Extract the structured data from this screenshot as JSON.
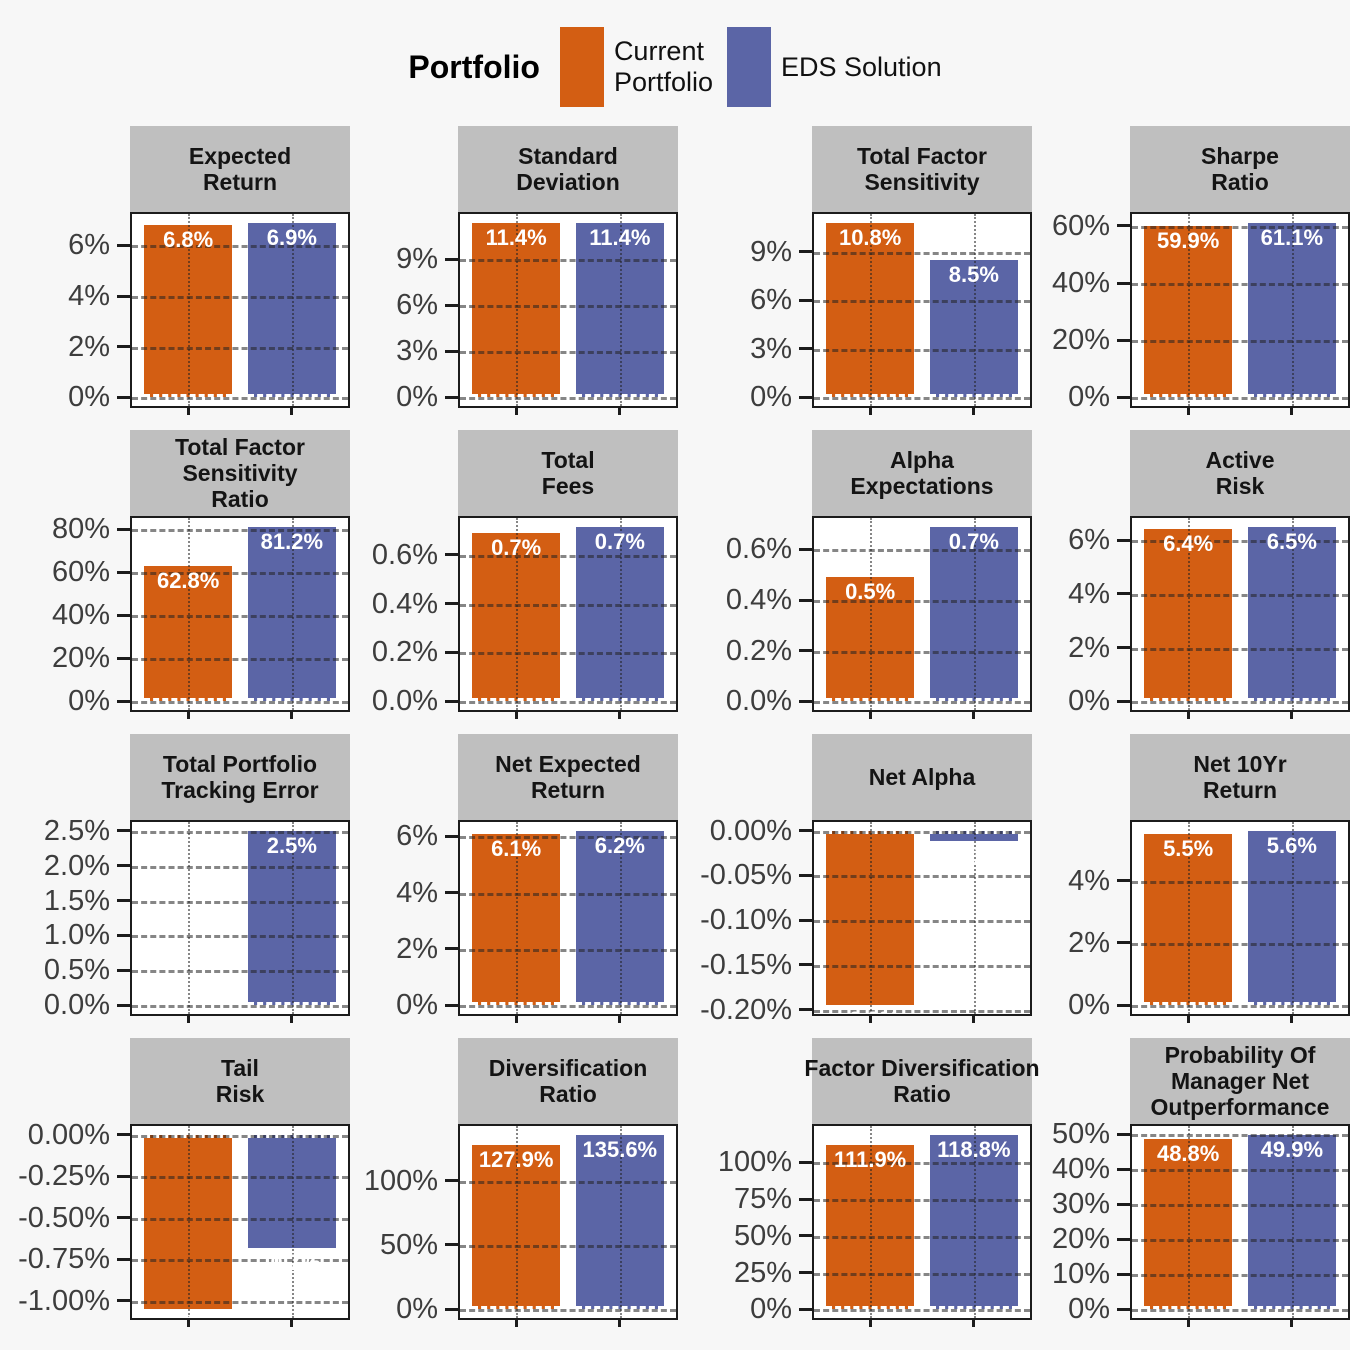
{
  "legend": {
    "title": "Portfolio",
    "items": [
      {
        "label": "Current Portfolio",
        "lines": [
          "Current",
          "Portfolio"
        ],
        "color": "#D35E13"
      },
      {
        "label": "EDS Solution",
        "lines": [
          "EDS Solution"
        ],
        "color": "#5B65A6"
      }
    ]
  },
  "colors": {
    "current_portfolio": "#D35E13",
    "eds_solution": "#5B65A6",
    "strip_background": "#BFBFBF",
    "page_background": "#F7F7F7",
    "panel_border": "#1C1C1C",
    "tick_text": "#3D3D3D"
  },
  "chart_data": [
    {
      "type": "bar",
      "title": "Expected Return",
      "title_lines": [
        "Expected",
        "Return"
      ],
      "categories": [
        "Current Portfolio",
        "EDS Solution"
      ],
      "values": [
        6.8,
        6.9
      ],
      "bar_labels": [
        "6.8%",
        "6.9%"
      ],
      "yticks": [
        0,
        2,
        4,
        6
      ],
      "ytick_labels": [
        "0%",
        "2%",
        "4%",
        "6%"
      ],
      "ylim": [
        -0.345,
        7.245
      ],
      "grid": true,
      "legend_position": "top"
    },
    {
      "type": "bar",
      "title": "Standard Deviation",
      "title_lines": [
        "Standard",
        "Deviation"
      ],
      "categories": [
        "Current Portfolio",
        "EDS Solution"
      ],
      "values": [
        11.4,
        11.4
      ],
      "bar_labels": [
        "11.4%",
        "11.4%"
      ],
      "yticks": [
        0,
        3,
        6,
        9
      ],
      "ytick_labels": [
        "0%",
        "3%",
        "6%",
        "9%"
      ],
      "ylim": [
        -0.57,
        11.97
      ],
      "grid": true
    },
    {
      "type": "bar",
      "title": "Total Factor Sensitivity",
      "title_lines": [
        "Total Factor",
        "Sensitivity"
      ],
      "categories": [
        "Current Portfolio",
        "EDS Solution"
      ],
      "values": [
        10.8,
        8.5
      ],
      "bar_labels": [
        "10.8%",
        "8.5%"
      ],
      "yticks": [
        0,
        3,
        6,
        9
      ],
      "ytick_labels": [
        "0%",
        "3%",
        "6%",
        "9%"
      ],
      "ylim": [
        -0.54,
        11.34
      ],
      "grid": true
    },
    {
      "type": "bar",
      "title": "Sharpe Ratio",
      "title_lines": [
        "Sharpe",
        "Ratio"
      ],
      "categories": [
        "Current Portfolio",
        "EDS Solution"
      ],
      "values": [
        59.9,
        61.1
      ],
      "bar_labels": [
        "59.9%",
        "61.1%"
      ],
      "yticks": [
        0,
        20,
        40,
        60
      ],
      "ytick_labels": [
        "0%",
        "20%",
        "40%",
        "60%"
      ],
      "ylim": [
        -3.055,
        64.155
      ],
      "grid": true
    },
    {
      "type": "bar",
      "title": "Total Factor Sensitivity Ratio",
      "title_lines": [
        "Total Factor",
        "Sensitivity",
        "Ratio"
      ],
      "categories": [
        "Current Portfolio",
        "EDS Solution"
      ],
      "values": [
        62.8,
        81.2
      ],
      "bar_labels": [
        "62.8%",
        "81.2%"
      ],
      "yticks": [
        0,
        20,
        40,
        60,
        80
      ],
      "ytick_labels": [
        "0%",
        "20%",
        "40%",
        "60%",
        "80%"
      ],
      "ylim": [
        -4.06,
        85.26
      ],
      "grid": true
    },
    {
      "type": "bar",
      "title": "Total Fees",
      "title_lines": [
        "Total",
        "Fees"
      ],
      "categories": [
        "Current Portfolio",
        "EDS Solution"
      ],
      "values": [
        0.69,
        0.715
      ],
      "bar_labels": [
        "0.7%",
        "0.7%"
      ],
      "yticks": [
        0,
        0.2,
        0.4,
        0.6
      ],
      "ytick_labels": [
        "0.0%",
        "0.2%",
        "0.4%",
        "0.6%"
      ],
      "ylim": [
        -0.0358,
        0.7508
      ],
      "grid": true
    },
    {
      "type": "bar",
      "title": "Alpha Expectations",
      "title_lines": [
        "Alpha",
        "Expectations"
      ],
      "categories": [
        "Current Portfolio",
        "EDS Solution"
      ],
      "values": [
        0.49,
        0.69
      ],
      "bar_labels": [
        "0.5%",
        "0.7%"
      ],
      "yticks": [
        0,
        0.2,
        0.4,
        0.6
      ],
      "ytick_labels": [
        "0.0%",
        "0.2%",
        "0.4%",
        "0.6%"
      ],
      "ylim": [
        -0.0345,
        0.7245
      ],
      "grid": true
    },
    {
      "type": "bar",
      "title": "Active Risk",
      "title_lines": [
        "Active",
        "Risk"
      ],
      "categories": [
        "Current Portfolio",
        "EDS Solution"
      ],
      "values": [
        6.4,
        6.5
      ],
      "bar_labels": [
        "6.4%",
        "6.5%"
      ],
      "yticks": [
        0,
        2,
        4,
        6
      ],
      "ytick_labels": [
        "0%",
        "2%",
        "4%",
        "6%"
      ],
      "ylim": [
        -0.325,
        6.825
      ],
      "grid": true
    },
    {
      "type": "bar",
      "title": "Total Portfolio Tracking Error",
      "title_lines": [
        "Total Portfolio",
        "Tracking Error"
      ],
      "categories": [
        "Current Portfolio",
        "EDS Solution"
      ],
      "values": [
        0,
        2.5
      ],
      "bar_labels": [
        null,
        "2.5%"
      ],
      "yticks": [
        0,
        0.5,
        1.0,
        1.5,
        2.0,
        2.5
      ],
      "ytick_labels": [
        "0.0%",
        "0.5%",
        "1.0%",
        "1.5%",
        "2.0%",
        "2.5%"
      ],
      "ylim": [
        -0.125,
        2.625
      ],
      "grid": true
    },
    {
      "type": "bar",
      "title": "Net Expected Return",
      "title_lines": [
        "Net Expected",
        "Return"
      ],
      "categories": [
        "Current Portfolio",
        "EDS Solution"
      ],
      "values": [
        6.1,
        6.2
      ],
      "bar_labels": [
        "6.1%",
        "6.2%"
      ],
      "yticks": [
        0,
        2,
        4,
        6
      ],
      "ytick_labels": [
        "0%",
        "2%",
        "4%",
        "6%"
      ],
      "ylim": [
        -0.31,
        6.51
      ],
      "grid": true
    },
    {
      "type": "bar",
      "title": "Net Alpha",
      "title_lines": [
        "Net Alpha"
      ],
      "categories": [
        "Current Portfolio",
        "EDS Solution"
      ],
      "values": [
        -0.195,
        -0.012
      ],
      "bar_labels": [
        "-0.2%",
        "0%"
      ],
      "yticks": [
        0,
        -0.05,
        -0.1,
        -0.15,
        -0.2
      ],
      "ytick_labels": [
        "0.00%",
        "-0.05%",
        "-0.10%",
        "-0.15%",
        "-0.20%"
      ],
      "ylim": [
        -0.20475,
        0.00975
      ],
      "grid": true
    },
    {
      "type": "bar",
      "title": "Net 10Yr Return",
      "title_lines": [
        "Net 10Yr",
        "Return"
      ],
      "categories": [
        "Current Portfolio",
        "EDS Solution"
      ],
      "values": [
        5.5,
        5.6
      ],
      "bar_labels": [
        "5.5%",
        "5.6%"
      ],
      "yticks": [
        0,
        2,
        4
      ],
      "ytick_labels": [
        "0%",
        "2%",
        "4%"
      ],
      "ylim": [
        -0.28,
        5.88
      ],
      "grid": true
    },
    {
      "type": "bar",
      "title": "Tail Risk",
      "title_lines": [
        "Tail",
        "Risk"
      ],
      "categories": [
        "Current Portfolio",
        "EDS Solution"
      ],
      "values": [
        -1.05,
        -0.68
      ],
      "bar_labels": [
        "-1.1%",
        "-0.7%"
      ],
      "yticks": [
        0,
        -0.25,
        -0.5,
        -0.75,
        -1.0
      ],
      "ytick_labels": [
        "0.00%",
        "-0.25%",
        "-0.50%",
        "-0.75%",
        "-1.00%"
      ],
      "ylim": [
        -1.1025,
        0.0525
      ],
      "grid": true
    },
    {
      "type": "bar",
      "title": "Diversification Ratio",
      "title_lines": [
        "Diversification",
        "Ratio"
      ],
      "categories": [
        "Current Portfolio",
        "EDS Solution"
      ],
      "values": [
        127.9,
        135.6
      ],
      "bar_labels": [
        "127.9%",
        "135.6%"
      ],
      "yticks": [
        0,
        50,
        100
      ],
      "ytick_labels": [
        "0%",
        "50%",
        "100%"
      ],
      "ylim": [
        -6.78,
        142.38
      ],
      "grid": true
    },
    {
      "type": "bar",
      "title": "Factor Diversification Ratio",
      "title_lines": [
        "Factor Diversification",
        "Ratio"
      ],
      "categories": [
        "Current Portfolio",
        "EDS Solution"
      ],
      "values": [
        111.9,
        118.8
      ],
      "bar_labels": [
        "111.9%",
        "118.8%"
      ],
      "yticks": [
        0,
        25,
        50,
        75,
        100
      ],
      "ytick_labels": [
        "0%",
        "25%",
        "50%",
        "75%",
        "100%"
      ],
      "ylim": [
        -5.94,
        124.74
      ],
      "grid": true
    },
    {
      "type": "bar",
      "title": "Probability Of Manager Net Outperformance",
      "title_lines": [
        "Probability Of",
        "Manager Net",
        "Outperformance"
      ],
      "categories": [
        "Current Portfolio",
        "EDS Solution"
      ],
      "values": [
        48.8,
        49.9
      ],
      "bar_labels": [
        "48.8%",
        "49.9%"
      ],
      "yticks": [
        0,
        10,
        20,
        30,
        40,
        50
      ],
      "ytick_labels": [
        "0%",
        "10%",
        "20%",
        "30%",
        "40%",
        "50%"
      ],
      "ylim": [
        -2.495,
        52.395
      ],
      "grid": true
    }
  ]
}
